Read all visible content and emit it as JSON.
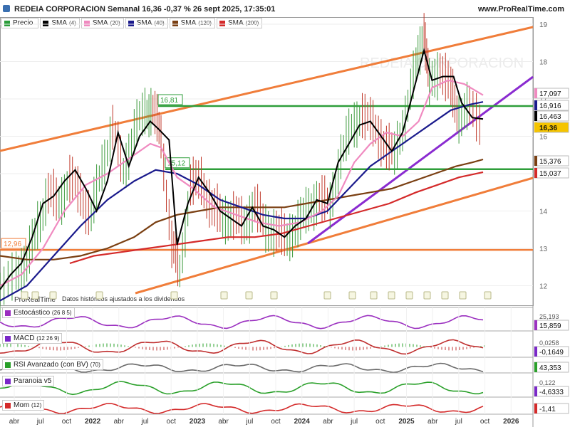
{
  "header": {
    "title": "REDEIA CORPORACION Semanal 16,36 -0,37 % 26 sept 2025, 17:35:01",
    "site": "www.ProRealTime.com"
  },
  "watermark": "REDEIA CORPORACION",
  "legend": [
    {
      "label": "Precio",
      "param": "",
      "color": "#2a9d3a"
    },
    {
      "label": "SMA",
      "param": "(4)",
      "color": "#000000"
    },
    {
      "label": "SMA",
      "param": "(20)",
      "color": "#f08ac0"
    },
    {
      "label": "SMA",
      "param": "(40)",
      "color": "#1a1a8c"
    },
    {
      "label": "SMA",
      "param": "(120)",
      "color": "#7a3f12"
    },
    {
      "label": "SMA",
      "param": "(200)",
      "color": "#d42a2a"
    }
  ],
  "chart_data": {
    "type": "line",
    "y_axis_ticks": [
      "19",
      "18",
      "17",
      "16",
      "15",
      "14",
      "13",
      "12"
    ],
    "x_axis_ticks": [
      "abr",
      "jul",
      "oct",
      "2022",
      "abr",
      "jul",
      "oct",
      "2023",
      "abr",
      "jul",
      "oct",
      "2024",
      "abr",
      "jul",
      "oct",
      "2025",
      "abr",
      "jul",
      "oct",
      "2026"
    ],
    "levels": [
      {
        "label": "16,81",
        "value": 16.81,
        "color": "#2e9e3a"
      },
      {
        "label": "15,12",
        "value": 15.12,
        "color": "#2e9e3a"
      },
      {
        "label": "12,96",
        "value": 12.96,
        "color": "#f07d3a"
      }
    ],
    "price_tags": [
      {
        "label": "17,097",
        "value": 17.097,
        "color": "#f08ac0"
      },
      {
        "label": "16,916",
        "value": 16.916,
        "color": "#1a1a8c"
      },
      {
        "label": "16,463",
        "value": 16.463,
        "color": "#000000"
      },
      {
        "label": "16,36",
        "value": 16.36,
        "color": "#f5c400"
      },
      {
        "label": "15,376",
        "value": 15.376,
        "color": "#7a3f12"
      },
      {
        "label": "15,037",
        "value": 15.037,
        "color": "#d42a2a"
      }
    ],
    "note": "Datos históricos ajustados a los dividendos",
    "brand_small": "ProRealTime",
    "series": [
      {
        "name": "SMA (4)",
        "color": "#000000",
        "points": [
          [
            0,
            11.9
          ],
          [
            8,
            12.3
          ],
          [
            16,
            12.6
          ],
          [
            24,
            13.3
          ],
          [
            32,
            14.2
          ],
          [
            40,
            14.4
          ],
          [
            48,
            14.8
          ],
          [
            56,
            15.1
          ],
          [
            64,
            14.6
          ],
          [
            72,
            14.0
          ],
          [
            80,
            14.8
          ],
          [
            88,
            16.1
          ],
          [
            96,
            15.2
          ],
          [
            104,
            16.0
          ],
          [
            112,
            16.4
          ],
          [
            118,
            16.2
          ],
          [
            126,
            15.9
          ],
          [
            132,
            13.1
          ],
          [
            140,
            14.2
          ],
          [
            148,
            14.9
          ],
          [
            156,
            14.5
          ],
          [
            164,
            14.0
          ],
          [
            172,
            13.8
          ],
          [
            180,
            13.6
          ],
          [
            188,
            14.1
          ],
          [
            196,
            13.6
          ],
          [
            204,
            13.5
          ],
          [
            212,
            13.3
          ],
          [
            220,
            13.6
          ],
          [
            228,
            13.8
          ],
          [
            236,
            14.3
          ],
          [
            244,
            14.2
          ],
          [
            252,
            15.3
          ],
          [
            260,
            15.8
          ],
          [
            268,
            16.3
          ],
          [
            276,
            16.4
          ],
          [
            284,
            16.0
          ],
          [
            292,
            15.6
          ],
          [
            300,
            16.1
          ],
          [
            308,
            17.2
          ],
          [
            316,
            18.3
          ],
          [
            322,
            17.5
          ],
          [
            330,
            17.6
          ],
          [
            338,
            17.6
          ],
          [
            344,
            16.9
          ],
          [
            352,
            16.5
          ],
          [
            360,
            16.46
          ]
        ]
      },
      {
        "name": "SMA (20)",
        "color": "#f08ac0",
        "points": [
          [
            0,
            12.0
          ],
          [
            16,
            12.3
          ],
          [
            32,
            13.0
          ],
          [
            48,
            14.0
          ],
          [
            64,
            14.7
          ],
          [
            80,
            15.0
          ],
          [
            96,
            15.4
          ],
          [
            112,
            15.8
          ],
          [
            120,
            15.7
          ],
          [
            132,
            14.9
          ],
          [
            144,
            14.6
          ],
          [
            160,
            14.1
          ],
          [
            176,
            13.9
          ],
          [
            192,
            13.7
          ],
          [
            208,
            13.6
          ],
          [
            224,
            13.7
          ],
          [
            240,
            14.0
          ],
          [
            252,
            14.4
          ],
          [
            264,
            15.3
          ],
          [
            276,
            15.8
          ],
          [
            288,
            16.1
          ],
          [
            300,
            16.0
          ],
          [
            312,
            16.4
          ],
          [
            322,
            17.3
          ],
          [
            334,
            17.5
          ],
          [
            346,
            17.4
          ],
          [
            360,
            17.1
          ]
        ]
      },
      {
        "name": "SMA (40)",
        "color": "#1a1a8c",
        "points": [
          [
            0,
            11.6
          ],
          [
            20,
            12.0
          ],
          [
            40,
            12.8
          ],
          [
            60,
            13.6
          ],
          [
            80,
            14.3
          ],
          [
            100,
            14.8
          ],
          [
            116,
            15.1
          ],
          [
            132,
            15.0
          ],
          [
            148,
            14.7
          ],
          [
            164,
            14.3
          ],
          [
            180,
            14.1
          ],
          [
            196,
            13.9
          ],
          [
            212,
            13.8
          ],
          [
            228,
            13.8
          ],
          [
            244,
            14.0
          ],
          [
            260,
            14.6
          ],
          [
            276,
            15.2
          ],
          [
            292,
            15.6
          ],
          [
            308,
            16.0
          ],
          [
            320,
            16.3
          ],
          [
            336,
            16.7
          ],
          [
            350,
            16.85
          ],
          [
            360,
            16.92
          ]
        ]
      },
      {
        "name": "SMA (120)",
        "color": "#7a3f12",
        "points": [
          [
            0,
            12.8
          ],
          [
            20,
            12.7
          ],
          [
            40,
            12.7
          ],
          [
            60,
            12.8
          ],
          [
            80,
            13.0
          ],
          [
            100,
            13.3
          ],
          [
            116,
            13.7
          ],
          [
            132,
            13.9
          ],
          [
            148,
            14.0
          ],
          [
            164,
            14.1
          ],
          [
            180,
            14.1
          ],
          [
            196,
            14.1
          ],
          [
            212,
            14.1
          ],
          [
            228,
            14.2
          ],
          [
            244,
            14.3
          ],
          [
            260,
            14.4
          ],
          [
            276,
            14.5
          ],
          [
            292,
            14.6
          ],
          [
            308,
            14.8
          ],
          [
            324,
            15.0
          ],
          [
            340,
            15.2
          ],
          [
            352,
            15.3
          ],
          [
            360,
            15.38
          ]
        ]
      },
      {
        "name": "SMA (200)",
        "color": "#d42a2a",
        "points": [
          [
            52,
            12.6
          ],
          [
            70,
            12.8
          ],
          [
            90,
            12.9
          ],
          [
            110,
            13.0
          ],
          [
            130,
            13.1
          ],
          [
            150,
            13.2
          ],
          [
            170,
            13.3
          ],
          [
            190,
            13.3
          ],
          [
            210,
            13.4
          ],
          [
            230,
            13.6
          ],
          [
            250,
            13.8
          ],
          [
            270,
            14.0
          ],
          [
            290,
            14.2
          ],
          [
            310,
            14.5
          ],
          [
            326,
            14.7
          ],
          [
            342,
            14.9
          ],
          [
            360,
            15.04
          ]
        ]
      },
      {
        "name": "Precio",
        "color": "#2a9d3a",
        "points": [
          [
            0,
            11.7
          ],
          [
            12,
            12.4
          ],
          [
            20,
            12.6
          ],
          [
            28,
            13.6
          ],
          [
            36,
            14.5
          ],
          [
            44,
            14.2
          ],
          [
            52,
            14.9
          ],
          [
            60,
            14.4
          ],
          [
            68,
            13.9
          ],
          [
            76,
            15.1
          ],
          [
            84,
            16.3
          ],
          [
            92,
            15.0
          ],
          [
            100,
            16.2
          ],
          [
            108,
            16.6
          ],
          [
            114,
            16.8
          ],
          [
            120,
            15.9
          ],
          [
            128,
            13.2
          ],
          [
            134,
            12.3
          ],
          [
            142,
            14.8
          ],
          [
            150,
            14.7
          ],
          [
            158,
            14.2
          ],
          [
            166,
            13.7
          ],
          [
            174,
            14.0
          ],
          [
            182,
            13.5
          ],
          [
            190,
            14.3
          ],
          [
            198,
            13.4
          ],
          [
            206,
            13.6
          ],
          [
            214,
            13.1
          ],
          [
            222,
            13.8
          ],
          [
            230,
            13.9
          ],
          [
            238,
            14.5
          ],
          [
            246,
            14.0
          ],
          [
            254,
            15.6
          ],
          [
            262,
            16.1
          ],
          [
            270,
            16.7
          ],
          [
            278,
            16.2
          ],
          [
            286,
            15.9
          ],
          [
            294,
            15.4
          ],
          [
            302,
            16.6
          ],
          [
            310,
            17.8
          ],
          [
            316,
            18.9
          ],
          [
            320,
            17.3
          ],
          [
            328,
            17.9
          ],
          [
            336,
            17.2
          ],
          [
            342,
            16.6
          ],
          [
            350,
            16.7
          ],
          [
            360,
            16.36
          ]
        ]
      }
    ],
    "indicators": [
      {
        "name": "Estocástico",
        "param": "(26 8 5)",
        "value_label": "15,859",
        "value_label_2": "25,193",
        "tag_color": "#9b30c0"
      },
      {
        "name": "MACD",
        "param": "(12 26 9)",
        "value_label": "-0,1649",
        "value_label_2": "0,0258",
        "tag_color": "#7a28c8"
      },
      {
        "name": "RSI Avanzado (con BV)",
        "param": "(70)",
        "value_label": "43,353",
        "value_label_2": "",
        "tag_color": "#2aa02a"
      },
      {
        "name": "Paranoia v5",
        "param": "",
        "value_label": "-4,6333",
        "value_label_2": "0,122",
        "tag_color": "#7a28c8"
      },
      {
        "name": "Mom",
        "param": "(12)",
        "value_label": "-1,41",
        "value_label_2": "",
        "tag_color": "#d42a2a"
      }
    ]
  }
}
